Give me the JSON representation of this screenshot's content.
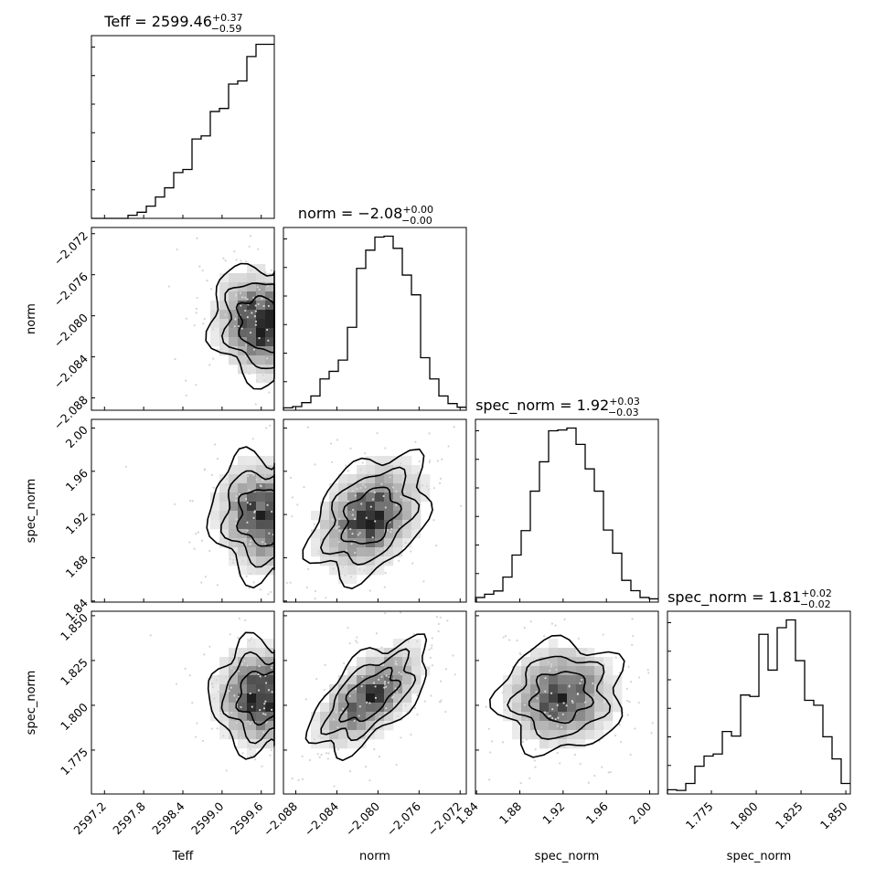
{
  "chart_data": {
    "type": "corner",
    "parameters": [
      {
        "name": "Teff",
        "title": "Teff = 2599.46",
        "sup": "+0.37",
        "sub": "−0.59",
        "range": [
          2597.0,
          2599.8
        ],
        "ticks": [
          2597.2,
          2597.8,
          2598.4,
          2599.0,
          2599.6
        ],
        "tick_labels": [
          "2597.2",
          "2597.8",
          "2598.4",
          "2599.0",
          "2599.6"
        ]
      },
      {
        "name": "norm",
        "title": "norm = −2.08",
        "sup": "+0.00",
        "sub": "−0.00",
        "range": [
          -2.0892,
          -2.0714
        ],
        "ticks": [
          -2.088,
          -2.084,
          -2.08,
          -2.076,
          -2.072
        ],
        "tick_labels": [
          "−2.088",
          "−2.084",
          "−2.080",
          "−2.076",
          "−2.072"
        ]
      },
      {
        "name": "spec_norm",
        "title": "spec_norm = 1.92",
        "sup": "+0.03",
        "sub": "−0.03",
        "range": [
          1.839,
          2.008
        ],
        "ticks": [
          1.84,
          1.88,
          1.92,
          1.96,
          2.0
        ],
        "tick_labels": [
          "1.84",
          "1.88",
          "1.92",
          "1.96",
          "2.00"
        ]
      },
      {
        "name": "spec_norm",
        "title": "spec_norm = 1.81",
        "sup": "+0.02",
        "sub": "−0.02",
        "range": [
          1.7505,
          1.8525
        ],
        "ticks": [
          1.775,
          1.8,
          1.825,
          1.85
        ],
        "tick_labels": [
          "1.775",
          "1.800",
          "1.825",
          "1.850"
        ]
      }
    ],
    "histograms": [
      [
        0,
        0,
        0,
        0,
        1,
        2,
        4,
        7,
        10,
        15,
        16,
        26,
        27,
        35,
        36,
        44,
        45,
        53,
        57,
        57
      ],
      [
        0.8,
        1.2,
        2.5,
        4.7,
        10.3,
        12.8,
        16.5,
        27.3,
        46.7,
        52.7,
        57.0,
        57.3,
        53.3,
        44.5,
        38.0,
        17.3,
        10.3,
        4.7,
        2.2,
        1.0
      ],
      [
        1.7,
        2.9,
        4.1,
        9.2,
        17.3,
        26.3,
        40.8,
        51.6,
        63.0,
        63.3,
        64.0,
        58.0,
        49.0,
        40.8,
        26.5,
        18.0,
        8.0,
        4.2,
        1.7,
        1.2
      ],
      [
        1.2,
        1.0,
        3.0,
        7.9,
        10.8,
        11.4,
        17.8,
        16.5,
        28.2,
        27.8,
        45.5,
        35.3,
        47.4,
        49.6,
        38.0,
        26.7,
        25.3,
        16.3,
        10.0,
        3.0
      ]
    ],
    "grid": false,
    "legend": "none"
  }
}
